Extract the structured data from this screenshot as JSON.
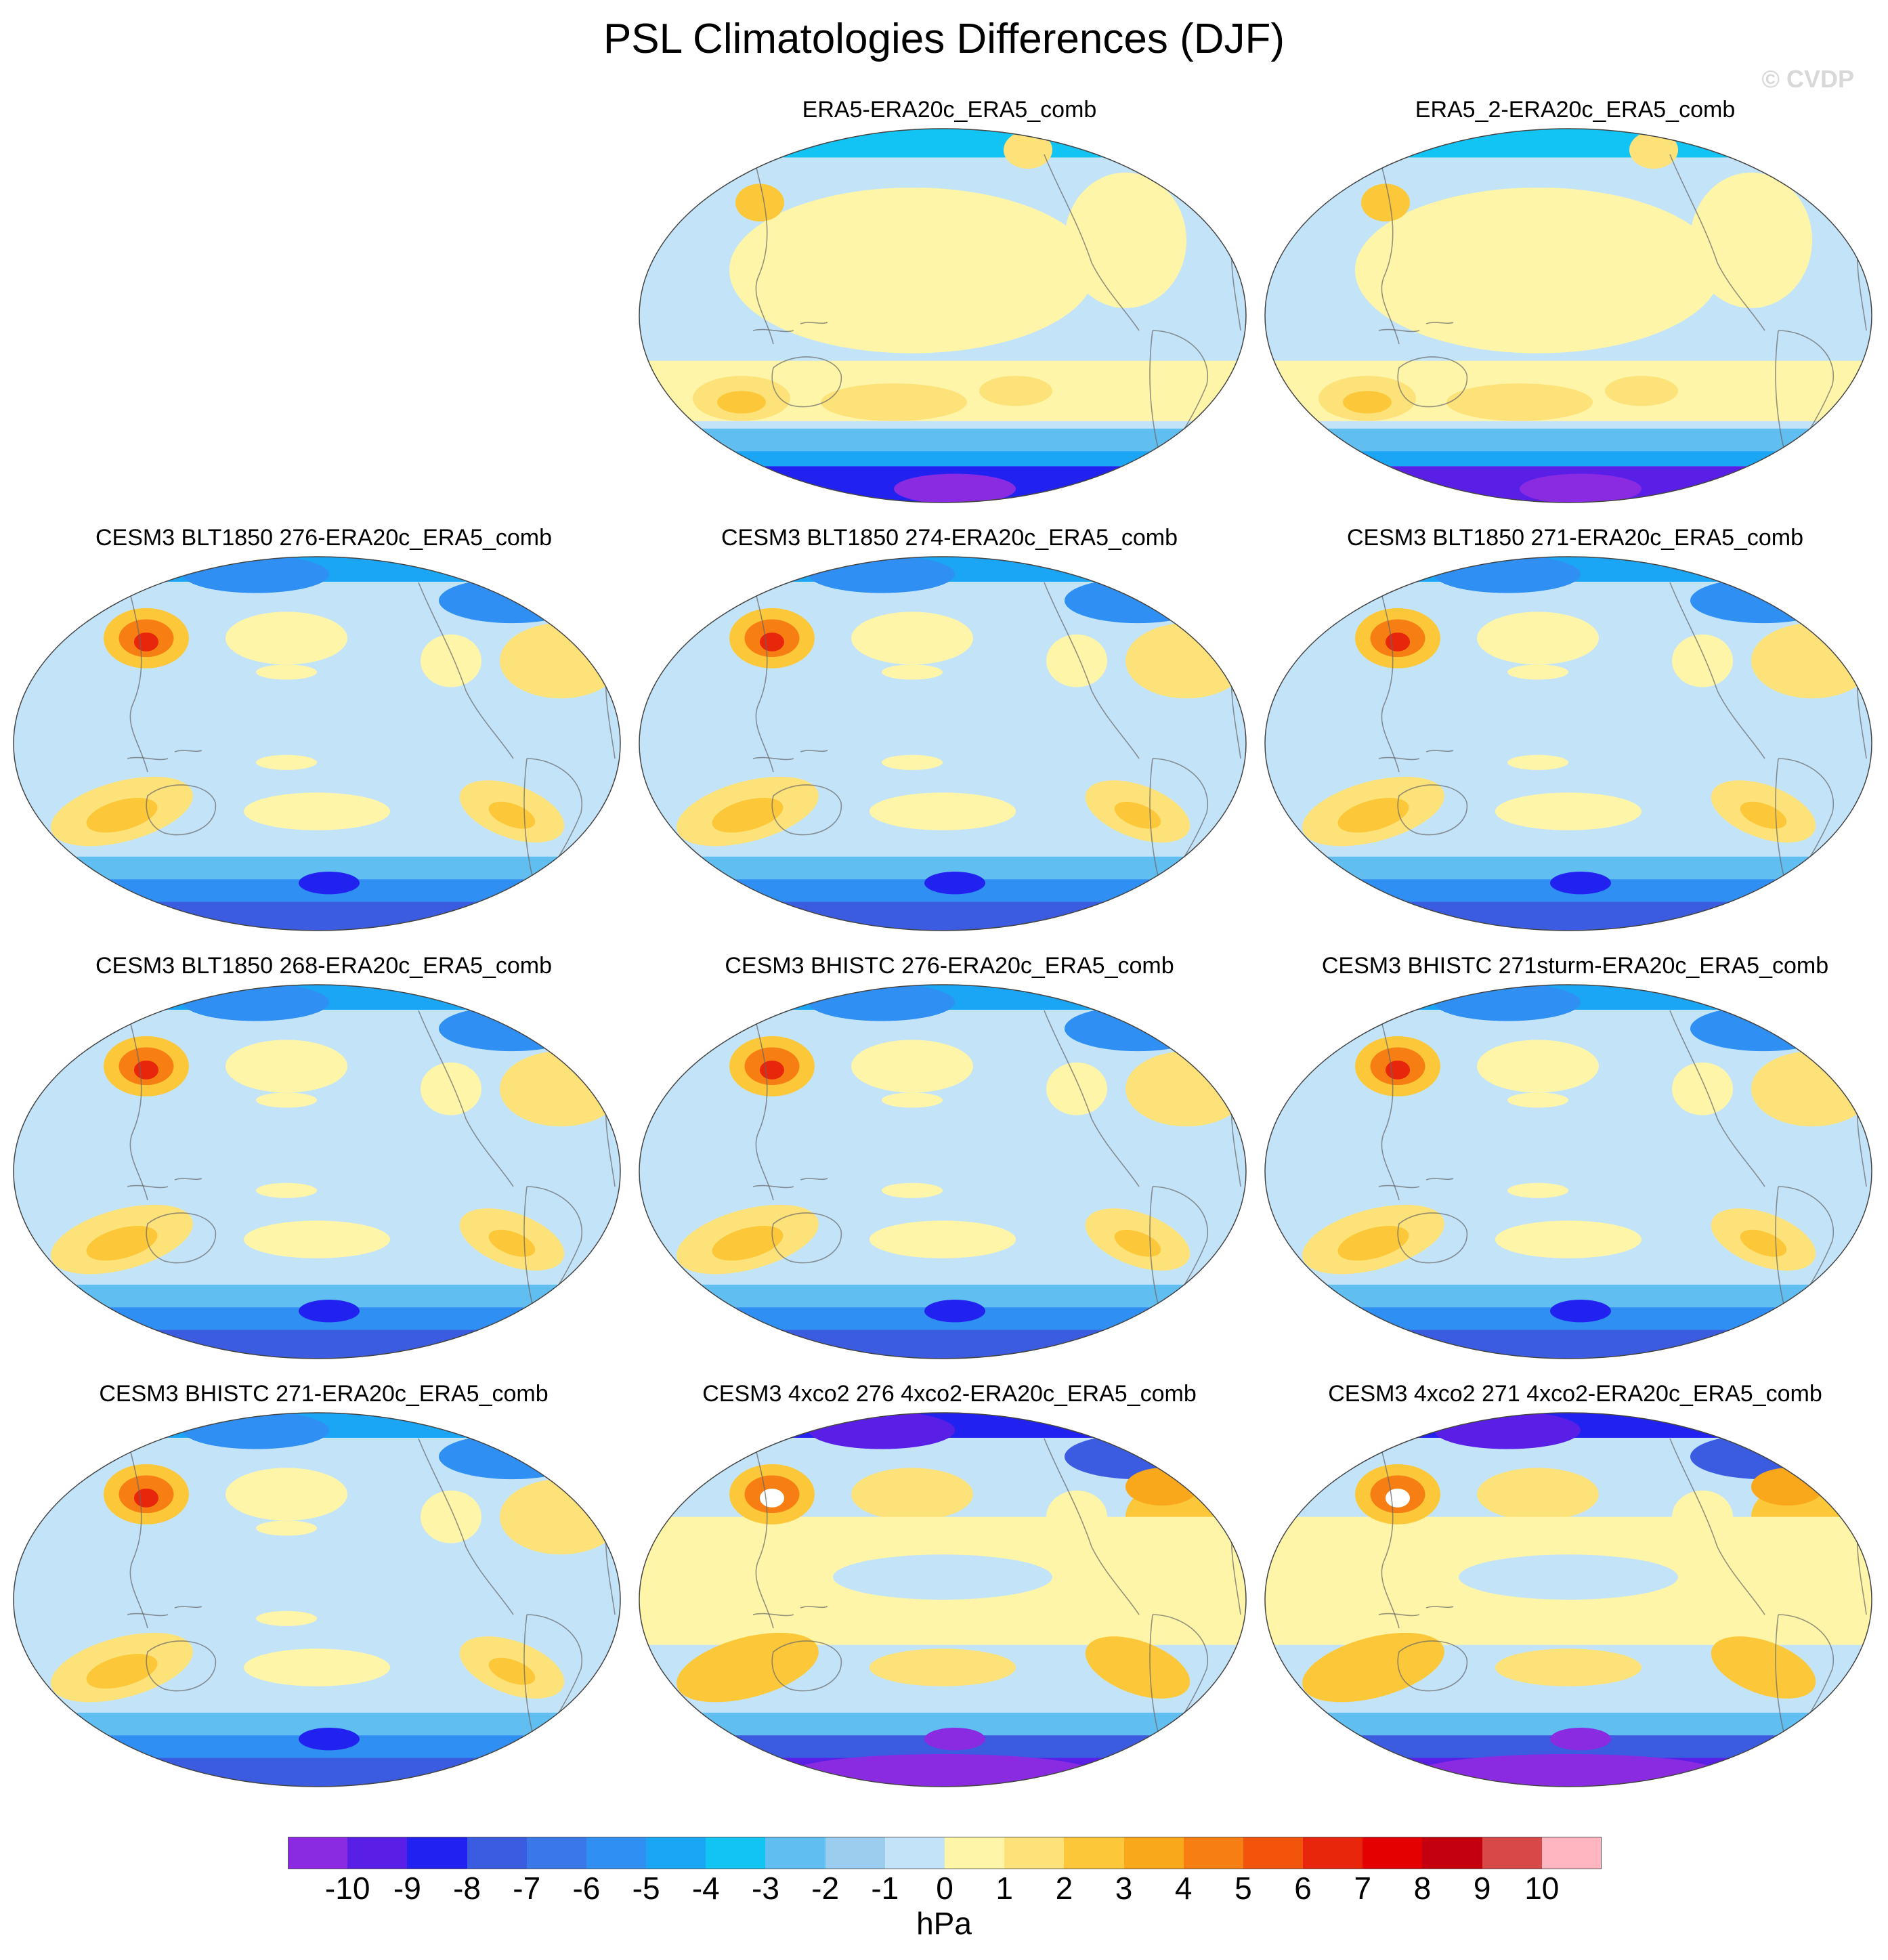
{
  "title": "PSL Climatologies Differences (DJF)",
  "watermark": "© CVDP",
  "units": "hPa",
  "colorbar": {
    "labels": [
      "-10",
      "-9",
      "-8",
      "-7",
      "-6",
      "-5",
      "-4",
      "-3",
      "-2",
      "-1",
      "0",
      "1",
      "2",
      "3",
      "4",
      "5",
      "6",
      "7",
      "8",
      "9",
      "10"
    ],
    "colors": [
      "#8a2be2",
      "#5a1fe6",
      "#2222f0",
      "#3b5ce0",
      "#3a78ea",
      "#2f8ff2",
      "#1aa5f5",
      "#12c4f4",
      "#60bff0",
      "#9dcdee",
      "#c3e4f8",
      "#fff5a8",
      "#fde27a",
      "#fcc83a",
      "#f9a81c",
      "#f67e12",
      "#f3540c",
      "#e8260c",
      "#e40000",
      "#c40010",
      "#d94848",
      "#ffb6c1"
    ]
  },
  "panels": [
    {
      "id": "p1",
      "title": "ERA5-ERA20c_ERA5_comb",
      "style": "era5",
      "row": 0,
      "col": 1
    },
    {
      "id": "p2",
      "title": "ERA5_2-ERA20c_ERA5_comb",
      "style": "era5b",
      "row": 0,
      "col": 2
    },
    {
      "id": "p3",
      "title": "CESM3 BLT1850 276-ERA20c_ERA5_comb",
      "style": "model",
      "row": 1,
      "col": 0
    },
    {
      "id": "p4",
      "title": "CESM3 BLT1850 274-ERA20c_ERA5_comb",
      "style": "model",
      "row": 1,
      "col": 1
    },
    {
      "id": "p5",
      "title": "CESM3 BLT1850 271-ERA20c_ERA5_comb",
      "style": "model",
      "row": 1,
      "col": 2
    },
    {
      "id": "p6",
      "title": "CESM3 BLT1850 268-ERA20c_ERA5_comb",
      "style": "model",
      "row": 2,
      "col": 0
    },
    {
      "id": "p7",
      "title": "CESM3 BHISTC 276-ERA20c_ERA5_comb",
      "style": "model",
      "row": 2,
      "col": 1
    },
    {
      "id": "p8",
      "title": "CESM3 BHISTC 271sturm-ERA20c_ERA5_comb",
      "style": "model",
      "row": 2,
      "col": 2
    },
    {
      "id": "p9",
      "title": "CESM3 BHISTC 271-ERA20c_ERA5_comb",
      "style": "model",
      "row": 3,
      "col": 0
    },
    {
      "id": "p10",
      "title": "CESM3 4xco2 276 4xco2-ERA20c_ERA5_comb",
      "style": "co2",
      "row": 3,
      "col": 1
    },
    {
      "id": "p11",
      "title": "CESM3 4xco2 271 4xco2-ERA20c_ERA5_comb",
      "style": "co2",
      "row": 3,
      "col": 2
    }
  ]
}
